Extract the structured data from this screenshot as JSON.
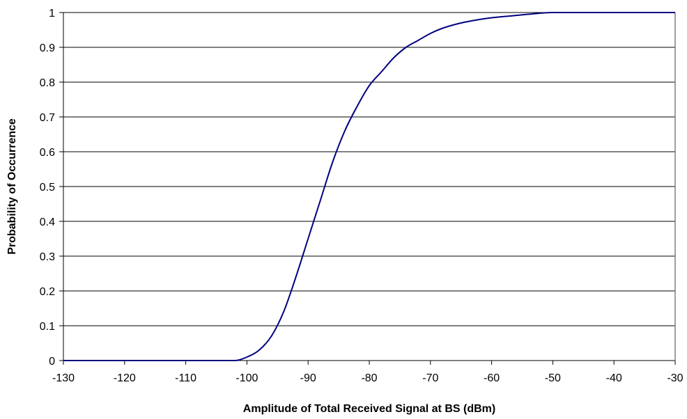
{
  "chart_data": {
    "type": "line",
    "title": "",
    "xlabel": "Amplitude of Total Received Signal at BS (dBm)",
    "ylabel": "Probability of Occurrence",
    "xlim": [
      -130,
      -30
    ],
    "ylim": [
      0,
      1
    ],
    "x_ticks": [
      -130,
      -120,
      -110,
      -100,
      -90,
      -80,
      -70,
      -60,
      -50,
      -40,
      -30
    ],
    "y_ticks": [
      0,
      0.1,
      0.2,
      0.3,
      0.4,
      0.5,
      0.6,
      0.7,
      0.8,
      0.9,
      1
    ],
    "x_tick_labels": [
      "-130",
      "-120",
      "-110",
      "-100",
      "-90",
      "-80",
      "-70",
      "-60",
      "-50",
      "-40",
      "-30"
    ],
    "y_tick_labels": [
      "0",
      "0.1",
      "0.2",
      "0.3",
      "0.4",
      "0.5",
      "0.6",
      "0.7",
      "0.8",
      "0.9",
      "1"
    ],
    "grid": "horizontal",
    "line_color": "#000080",
    "series": [
      {
        "x": [
          -130,
          -110,
          -102,
          -100,
          -98,
          -96,
          -94,
          -92,
          -90,
          -88,
          -86,
          -84,
          -82,
          -80,
          -78,
          -76,
          -74,
          -72,
          -70,
          -68,
          -65,
          -62,
          -60,
          -57,
          -54,
          -50,
          -48,
          -45,
          -40,
          -35,
          -30
        ],
        "y": [
          0,
          0,
          0,
          0.01,
          0.03,
          0.07,
          0.14,
          0.24,
          0.35,
          0.46,
          0.57,
          0.66,
          0.73,
          0.79,
          0.83,
          0.87,
          0.9,
          0.92,
          0.94,
          0.955,
          0.97,
          0.98,
          0.985,
          0.99,
          0.995,
          1.0,
          1.0,
          1.0,
          1.0,
          1.0,
          1.0
        ]
      }
    ]
  }
}
